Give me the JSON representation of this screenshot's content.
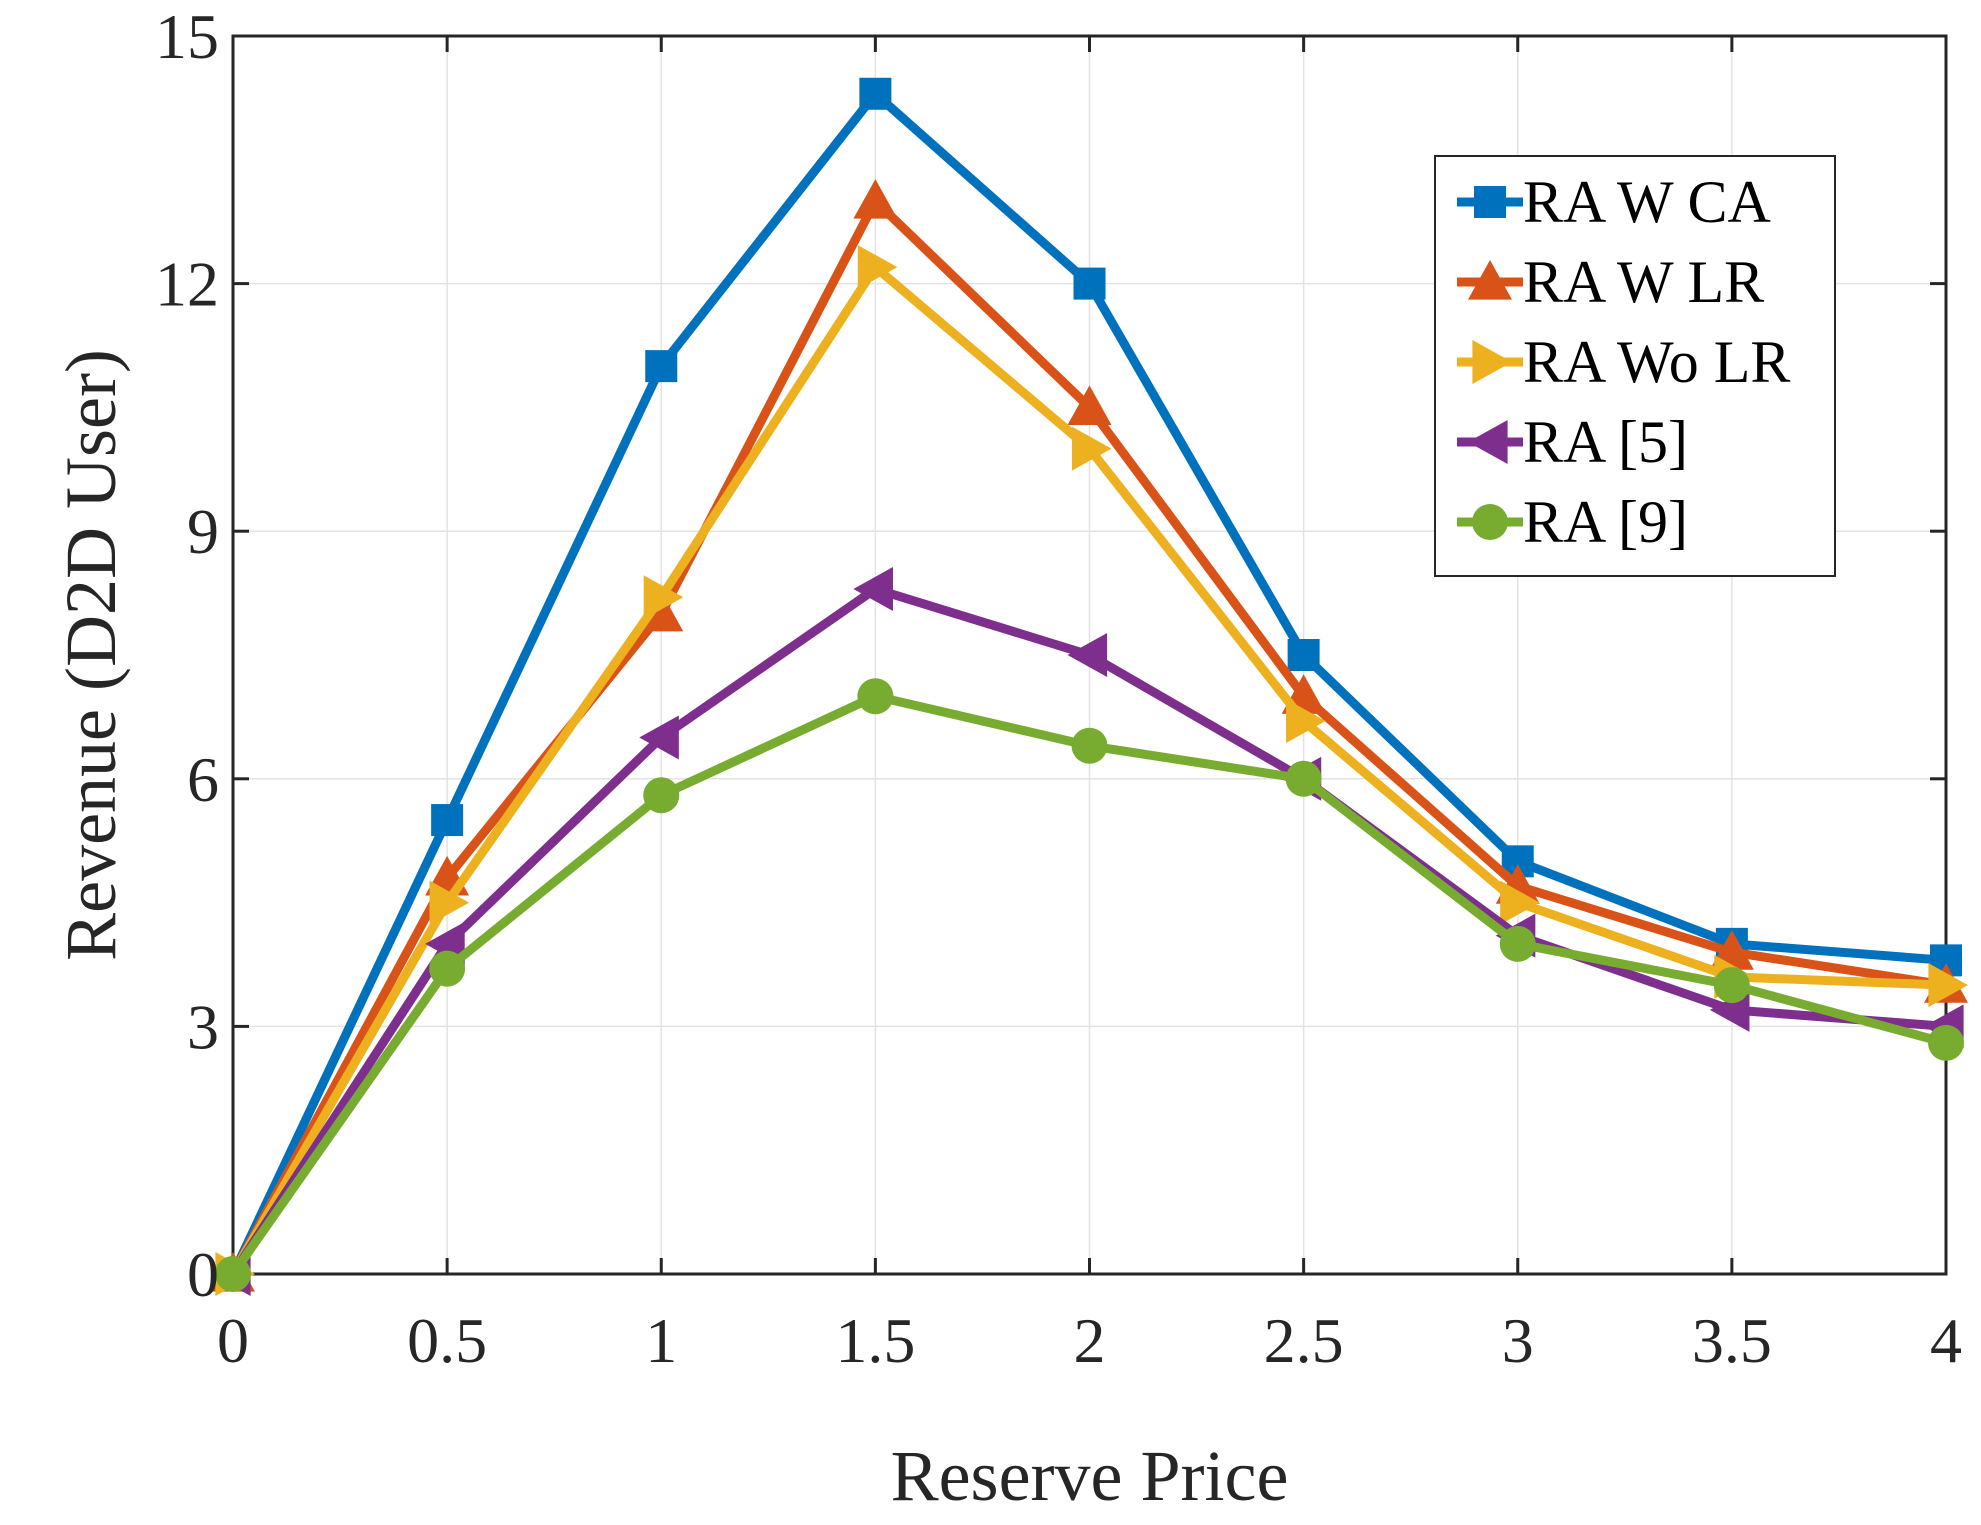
{
  "chart_data": {
    "type": "line",
    "title": "",
    "xlabel": "Reserve Price",
    "ylabel": "Revenue (D2D User)",
    "xlim": [
      0,
      4
    ],
    "ylim": [
      0,
      15
    ],
    "xticks": [
      0,
      0.5,
      1,
      1.5,
      2,
      2.5,
      3,
      3.5,
      4
    ],
    "xtick_labels": [
      "0",
      "0.5",
      "1",
      "1.5",
      "2",
      "2.5",
      "3",
      "3.5",
      "4"
    ],
    "yticks": [
      0,
      3,
      6,
      9,
      12,
      15
    ],
    "ytick_labels": [
      "0",
      "3",
      "6",
      "9",
      "12",
      "15"
    ],
    "grid": true,
    "legend_position": "top-right",
    "x": [
      0,
      0.5,
      1,
      1.5,
      2,
      2.5,
      3,
      3.5,
      4
    ],
    "series": [
      {
        "name": "RA W CA",
        "color": "#0072BD",
        "marker": "square",
        "values": [
          0,
          5.5,
          11,
          14.3,
          12,
          7.5,
          5,
          4,
          3.8
        ]
      },
      {
        "name": "RA W LR",
        "color": "#D95319",
        "marker": "triangle-up",
        "values": [
          0,
          4.8,
          8,
          13,
          10.5,
          7,
          4.7,
          3.9,
          3.5
        ]
      },
      {
        "name": "RA Wo LR",
        "color": "#EDB120",
        "marker": "triangle-right",
        "values": [
          0,
          4.5,
          8.2,
          12.2,
          10,
          6.7,
          4.5,
          3.6,
          3.5
        ]
      },
      {
        "name": "RA [5]",
        "color": "#7E2F8E",
        "marker": "triangle-left",
        "values": [
          0,
          4,
          6.5,
          8.3,
          7.5,
          6,
          4.1,
          3.2,
          3
        ]
      },
      {
        "name": "RA [9]",
        "color": "#77AC30",
        "marker": "circle",
        "values": [
          0,
          3.7,
          5.8,
          7,
          6.4,
          6,
          4,
          3.5,
          2.8
        ]
      }
    ]
  }
}
